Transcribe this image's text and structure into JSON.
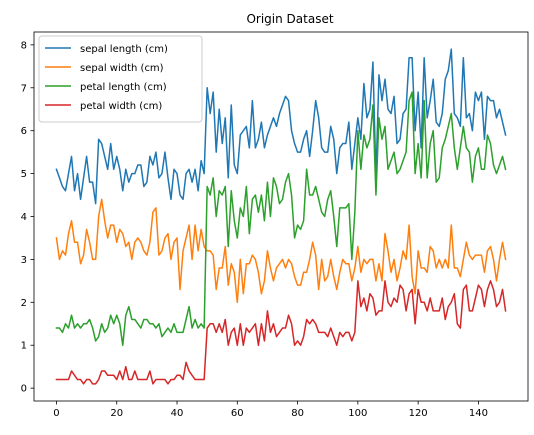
{
  "chart_data": {
    "type": "line",
    "title": "Origin Dataset",
    "xlabel": "",
    "ylabel": "",
    "xlim": [
      -7.45,
      156.45
    ],
    "ylim": [
      -0.3,
      8.3
    ],
    "xticks": [
      0,
      20,
      40,
      60,
      80,
      100,
      120,
      140
    ],
    "yticks": [
      0,
      1,
      2,
      3,
      4,
      5,
      6,
      7,
      8
    ],
    "grid": false,
    "legend_position": "top-left",
    "x": [
      0,
      1,
      2,
      3,
      4,
      5,
      6,
      7,
      8,
      9,
      10,
      11,
      12,
      13,
      14,
      15,
      16,
      17,
      18,
      19,
      20,
      21,
      22,
      23,
      24,
      25,
      26,
      27,
      28,
      29,
      30,
      31,
      32,
      33,
      34,
      35,
      36,
      37,
      38,
      39,
      40,
      41,
      42,
      43,
      44,
      45,
      46,
      47,
      48,
      49,
      50,
      51,
      52,
      53,
      54,
      55,
      56,
      57,
      58,
      59,
      60,
      61,
      62,
      63,
      64,
      65,
      66,
      67,
      68,
      69,
      70,
      71,
      72,
      73,
      74,
      75,
      76,
      77,
      78,
      79,
      80,
      81,
      82,
      83,
      84,
      85,
      86,
      87,
      88,
      89,
      90,
      91,
      92,
      93,
      94,
      95,
      96,
      97,
      98,
      99,
      100,
      101,
      102,
      103,
      104,
      105,
      106,
      107,
      108,
      109,
      110,
      111,
      112,
      113,
      114,
      115,
      116,
      117,
      118,
      119,
      120,
      121,
      122,
      123,
      124,
      125,
      126,
      127,
      128,
      129,
      130,
      131,
      132,
      133,
      134,
      135,
      136,
      137,
      138,
      139,
      140,
      141,
      142,
      143,
      144,
      145,
      146,
      147,
      148,
      149
    ],
    "series": [
      {
        "name": "sepal length (cm)",
        "color": "#1f77b4",
        "values": [
          5.1,
          4.9,
          4.7,
          4.6,
          5.0,
          5.4,
          4.6,
          5.0,
          4.4,
          4.9,
          5.4,
          4.8,
          4.8,
          4.3,
          5.8,
          5.7,
          5.4,
          5.1,
          5.7,
          5.1,
          5.4,
          5.1,
          4.6,
          5.1,
          4.8,
          5.0,
          5.0,
          5.2,
          5.2,
          4.7,
          4.8,
          5.4,
          5.2,
          5.5,
          4.9,
          5.0,
          5.5,
          4.9,
          4.4,
          5.1,
          5.0,
          4.5,
          4.4,
          5.0,
          5.1,
          4.8,
          5.1,
          4.6,
          5.3,
          5.0,
          7.0,
          6.4,
          6.9,
          5.5,
          6.5,
          5.7,
          6.3,
          4.9,
          6.6,
          5.2,
          5.0,
          5.9,
          6.0,
          6.1,
          5.6,
          6.7,
          5.6,
          5.8,
          6.2,
          5.6,
          5.9,
          6.1,
          6.3,
          6.1,
          6.4,
          6.6,
          6.8,
          6.7,
          6.0,
          5.7,
          5.5,
          5.5,
          5.8,
          6.0,
          5.4,
          6.0,
          6.7,
          6.3,
          5.6,
          5.5,
          5.5,
          6.1,
          5.8,
          5.0,
          5.6,
          5.7,
          5.7,
          6.2,
          5.1,
          5.7,
          6.3,
          5.8,
          7.1,
          6.3,
          6.5,
          7.6,
          4.9,
          7.3,
          6.7,
          7.2,
          6.5,
          6.4,
          6.8,
          5.7,
          5.8,
          6.4,
          6.5,
          7.7,
          7.7,
          6.0,
          6.9,
          5.6,
          7.7,
          6.3,
          6.7,
          7.2,
          6.2,
          6.1,
          6.4,
          7.2,
          7.4,
          7.9,
          6.4,
          6.3,
          6.1,
          7.7,
          6.3,
          6.4,
          6.0,
          6.9,
          6.7,
          6.9,
          5.8,
          6.8,
          6.7,
          6.7,
          6.3,
          6.5,
          6.2,
          5.9
        ]
      },
      {
        "name": "sepal width (cm)",
        "color": "#ff7f0e",
        "values": [
          3.5,
          3.0,
          3.2,
          3.1,
          3.6,
          3.9,
          3.4,
          3.4,
          2.9,
          3.1,
          3.7,
          3.4,
          3.0,
          3.0,
          4.0,
          4.4,
          3.9,
          3.5,
          3.8,
          3.8,
          3.4,
          3.7,
          3.6,
          3.3,
          3.4,
          3.0,
          3.4,
          3.5,
          3.4,
          3.2,
          3.1,
          3.4,
          4.1,
          4.2,
          3.1,
          3.2,
          3.5,
          3.6,
          3.0,
          3.4,
          3.5,
          2.3,
          3.2,
          3.5,
          3.8,
          3.0,
          3.8,
          3.2,
          3.7,
          3.3,
          3.2,
          3.2,
          3.1,
          2.3,
          2.8,
          2.8,
          3.3,
          2.4,
          2.9,
          2.7,
          2.0,
          3.0,
          2.2,
          2.9,
          2.9,
          3.1,
          3.0,
          2.7,
          2.2,
          2.5,
          3.2,
          2.8,
          2.5,
          2.8,
          2.9,
          3.0,
          2.8,
          3.0,
          2.9,
          2.6,
          2.4,
          2.4,
          2.7,
          2.7,
          3.0,
          3.4,
          3.1,
          2.3,
          3.0,
          2.5,
          2.6,
          3.0,
          2.6,
          2.3,
          2.7,
          3.0,
          2.9,
          2.9,
          2.5,
          2.8,
          3.3,
          2.7,
          3.0,
          2.9,
          3.0,
          3.0,
          2.5,
          2.9,
          2.5,
          3.6,
          3.2,
          2.7,
          3.0,
          2.5,
          2.8,
          3.2,
          3.0,
          3.8,
          2.6,
          2.2,
          3.2,
          2.8,
          2.8,
          2.7,
          3.3,
          3.2,
          2.8,
          3.0,
          2.8,
          3.0,
          2.8,
          3.8,
          2.8,
          2.8,
          2.6,
          3.0,
          3.4,
          3.1,
          3.0,
          3.1,
          3.1,
          3.1,
          2.7,
          3.2,
          3.3,
          3.0,
          2.5,
          3.0,
          3.4,
          3.0
        ]
      },
      {
        "name": "petal length (cm)",
        "color": "#2ca02c",
        "values": [
          1.4,
          1.4,
          1.3,
          1.5,
          1.4,
          1.7,
          1.4,
          1.5,
          1.4,
          1.5,
          1.5,
          1.6,
          1.4,
          1.1,
          1.2,
          1.5,
          1.3,
          1.4,
          1.7,
          1.5,
          1.7,
          1.5,
          1.0,
          1.7,
          1.9,
          1.6,
          1.6,
          1.5,
          1.4,
          1.6,
          1.6,
          1.5,
          1.5,
          1.4,
          1.5,
          1.2,
          1.3,
          1.4,
          1.3,
          1.5,
          1.3,
          1.3,
          1.3,
          1.6,
          1.9,
          1.4,
          1.6,
          1.4,
          1.5,
          1.4,
          4.7,
          4.5,
          4.9,
          4.0,
          4.6,
          4.5,
          4.7,
          3.3,
          4.6,
          3.9,
          3.5,
          4.2,
          4.0,
          4.7,
          3.6,
          4.4,
          4.5,
          4.1,
          4.5,
          3.9,
          4.8,
          4.0,
          4.9,
          4.7,
          4.3,
          4.4,
          4.8,
          5.0,
          4.5,
          3.5,
          3.8,
          3.7,
          3.9,
          5.1,
          4.5,
          4.5,
          4.7,
          4.4,
          4.1,
          4.0,
          4.4,
          4.6,
          4.0,
          3.3,
          4.2,
          4.2,
          4.2,
          4.3,
          3.0,
          4.1,
          6.0,
          5.1,
          5.9,
          5.6,
          5.8,
          6.6,
          4.5,
          6.3,
          5.8,
          6.1,
          5.1,
          5.3,
          5.5,
          5.0,
          5.1,
          5.3,
          5.5,
          6.7,
          6.9,
          5.0,
          5.7,
          4.9,
          6.7,
          4.9,
          5.7,
          6.0,
          4.8,
          4.9,
          5.6,
          5.8,
          6.1,
          6.4,
          5.6,
          5.1,
          5.6,
          6.1,
          5.6,
          5.5,
          4.8,
          5.4,
          5.6,
          5.1,
          5.1,
          5.9,
          5.7,
          5.2,
          5.0,
          5.2,
          5.4,
          5.1
        ]
      },
      {
        "name": "petal width (cm)",
        "color": "#d62728",
        "values": [
          0.2,
          0.2,
          0.2,
          0.2,
          0.2,
          0.4,
          0.3,
          0.2,
          0.2,
          0.1,
          0.2,
          0.2,
          0.1,
          0.1,
          0.2,
          0.4,
          0.4,
          0.3,
          0.3,
          0.3,
          0.2,
          0.4,
          0.2,
          0.5,
          0.2,
          0.2,
          0.4,
          0.2,
          0.2,
          0.2,
          0.2,
          0.4,
          0.1,
          0.2,
          0.2,
          0.2,
          0.2,
          0.1,
          0.2,
          0.2,
          0.3,
          0.3,
          0.2,
          0.6,
          0.4,
          0.3,
          0.2,
          0.2,
          0.2,
          0.2,
          1.4,
          1.5,
          1.5,
          1.3,
          1.5,
          1.3,
          1.6,
          1.0,
          1.3,
          1.4,
          1.0,
          1.5,
          1.0,
          1.4,
          1.3,
          1.4,
          1.5,
          1.0,
          1.5,
          1.1,
          1.8,
          1.3,
          1.5,
          1.2,
          1.3,
          1.4,
          1.4,
          1.7,
          1.5,
          1.0,
          1.1,
          1.0,
          1.2,
          1.6,
          1.5,
          1.6,
          1.5,
          1.3,
          1.3,
          1.3,
          1.2,
          1.4,
          1.2,
          1.0,
          1.3,
          1.2,
          1.3,
          1.3,
          1.1,
          1.3,
          2.5,
          1.9,
          2.1,
          1.8,
          2.2,
          2.1,
          1.7,
          1.8,
          1.8,
          2.5,
          2.0,
          1.9,
          2.1,
          2.0,
          2.4,
          2.3,
          1.8,
          2.2,
          2.3,
          1.5,
          2.3,
          2.0,
          2.0,
          1.8,
          2.1,
          1.8,
          1.8,
          1.8,
          2.1,
          1.6,
          1.9,
          2.0,
          2.2,
          1.5,
          1.4,
          2.3,
          2.4,
          1.8,
          1.8,
          2.1,
          2.4,
          2.3,
          1.9,
          2.3,
          2.5,
          2.3,
          1.9,
          2.0,
          2.3,
          1.8
        ]
      }
    ]
  }
}
